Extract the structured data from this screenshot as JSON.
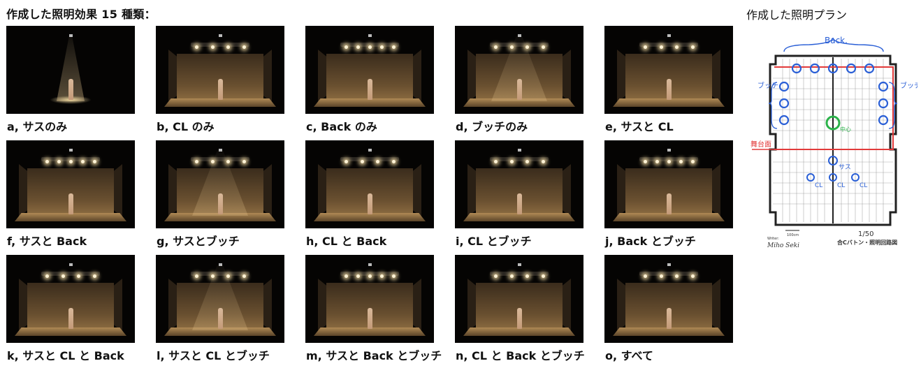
{
  "header": {
    "title": "作成した照明効果 15 種類："
  },
  "plan": {
    "title": "作成した照明プラン",
    "labels": {
      "back": "Back.",
      "butch_left": "ブッチ",
      "butch_right": "ブッチ",
      "stage_front": "舞台面",
      "sus": "サス",
      "center": "中心",
      "cl1": "CL",
      "cl2": "CL",
      "cl3": "CL",
      "scale": "1/50",
      "drawing_title": "合Cバトン・照明回路図",
      "writer_label": "Writer:",
      "writer_name": "Miho Seki",
      "scale_bar": "100cm"
    }
  },
  "effects": [
    {
      "caption": "a, サスのみ",
      "variant": "sus"
    },
    {
      "caption": "b, CL のみ",
      "variant": "cl"
    },
    {
      "caption": "c, Back のみ",
      "variant": "back"
    },
    {
      "caption": "d, ブッチのみ",
      "variant": "butch"
    },
    {
      "caption": "e, サスと CL",
      "variant": "full"
    },
    {
      "caption": "f, サスと Back",
      "variant": "back"
    },
    {
      "caption": "g, サスとブッチ",
      "variant": "butch"
    },
    {
      "caption": "h, CL と Back",
      "variant": "full"
    },
    {
      "caption": "i, CL とブッチ",
      "variant": "full"
    },
    {
      "caption": "j, Back とブッチ",
      "variant": "back"
    },
    {
      "caption": "k, サスと CL と Back",
      "variant": "full"
    },
    {
      "caption": "l, サスと CL とブッチ",
      "variant": "butch"
    },
    {
      "caption": "m, サスと Back とブッチ",
      "variant": "back"
    },
    {
      "caption": "n, CL と Back とブッチ",
      "variant": "full"
    },
    {
      "caption": "o, すべて",
      "variant": "full"
    }
  ]
}
